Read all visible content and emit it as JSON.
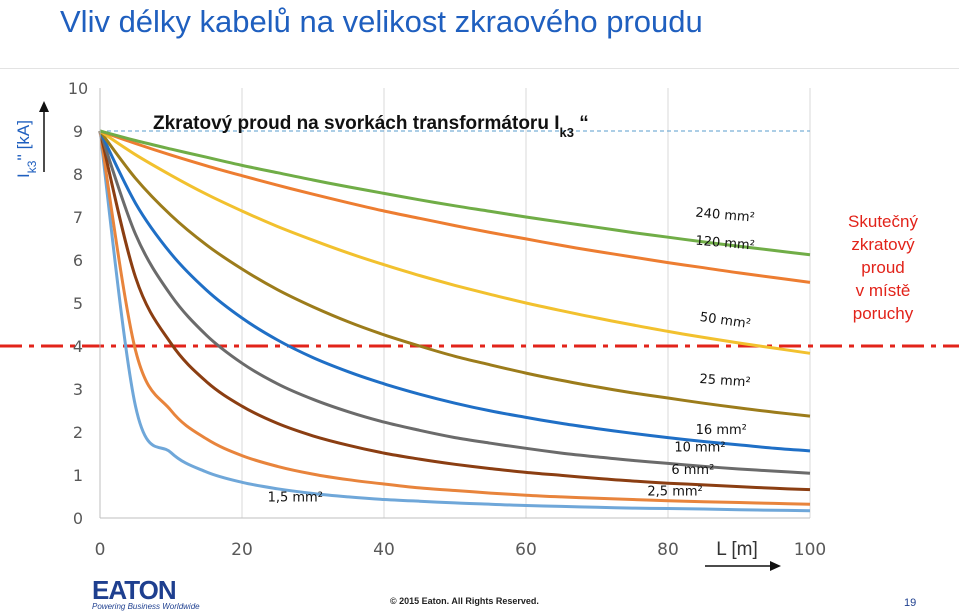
{
  "slide": {
    "title": "Vliv délky kabelů na velikost zkraového proudu",
    "fault_current_note": [
      "Skutečný",
      "zkratový",
      "proud",
      "v místě",
      "poruchy"
    ],
    "logo_text": "EATON",
    "logo_tagline": "Powering Business Worldwide",
    "copyright": "© 2015 Eaton. All Rights Reserved.",
    "page_number": "19"
  },
  "chart_data": {
    "type": "line",
    "title": "Zkratový proud na svorkách transformátoru I",
    "title_subscript": "k3",
    "title_suffix": " “",
    "ylabel": "I",
    "ylabel_sub": "k3",
    "ylabel_suffix": "'' [kA]",
    "xlabel": "L [m]",
    "xlim": [
      0,
      100
    ],
    "ylim": [
      0,
      10
    ],
    "x_ticks": [
      "0",
      "20",
      "40",
      "60",
      "80",
      "100"
    ],
    "y_ticks": [
      "0",
      "1",
      "2",
      "3",
      "4",
      "5",
      "6",
      "7",
      "8",
      "9",
      "10"
    ],
    "grid": "vertical",
    "reference_lines": [
      {
        "y": 9,
        "style": "dashed",
        "color": "#7ab0d8"
      },
      {
        "y": 4,
        "style": "dash-dot",
        "color": "#e2231a"
      }
    ],
    "x": [
      0,
      5,
      10,
      15,
      20,
      25,
      30,
      35,
      40,
      45,
      50,
      55,
      60,
      65,
      70,
      75,
      80,
      85,
      90,
      95,
      100
    ],
    "series": [
      {
        "name": "240 mm²",
        "color": "#70ad47",
        "values": [
          9.0,
          8.78,
          8.58,
          8.39,
          8.2,
          8.03,
          7.86,
          7.7,
          7.55,
          7.4,
          7.26,
          7.13,
          7.0,
          6.88,
          6.76,
          6.64,
          6.53,
          6.42,
          6.32,
          6.22,
          6.12
        ]
      },
      {
        "name": "120 mm²",
        "color": "#ed7d31",
        "values": [
          9.0,
          8.71,
          8.44,
          8.19,
          7.96,
          7.74,
          7.53,
          7.33,
          7.14,
          6.97,
          6.8,
          6.64,
          6.49,
          6.34,
          6.2,
          6.07,
          5.94,
          5.82,
          5.7,
          5.59,
          5.48
        ]
      },
      {
        "name": "50 mm²",
        "color": "#f2c12e",
        "values": [
          9.0,
          8.45,
          7.97,
          7.53,
          7.14,
          6.78,
          6.46,
          6.16,
          5.89,
          5.64,
          5.41,
          5.2,
          5.0,
          4.82,
          4.65,
          4.49,
          4.34,
          4.2,
          4.07,
          3.95,
          3.83
        ]
      },
      {
        "name": "25 mm²",
        "color": "#9c7c1b",
        "values": [
          9.0,
          7.9,
          7.04,
          6.35,
          5.79,
          5.31,
          4.91,
          4.56,
          4.26,
          4.0,
          3.76,
          3.56,
          3.37,
          3.2,
          3.05,
          2.91,
          2.79,
          2.67,
          2.56,
          2.46,
          2.37
        ]
      },
      {
        "name": "16 mm²",
        "color": "#1f6fc6",
        "values": [
          9.0,
          7.32,
          6.15,
          5.3,
          4.65,
          4.14,
          3.73,
          3.4,
          3.12,
          2.88,
          2.67,
          2.49,
          2.34,
          2.2,
          2.08,
          1.97,
          1.87,
          1.78,
          1.7,
          1.62,
          1.56
        ]
      },
      {
        "name": "10 mm²",
        "color": "#6b6b6b",
        "values": [
          9.0,
          6.6,
          5.18,
          4.25,
          3.6,
          3.12,
          2.76,
          2.47,
          2.23,
          2.04,
          1.87,
          1.74,
          1.62,
          1.51,
          1.42,
          1.34,
          1.27,
          1.2,
          1.14,
          1.09,
          1.04
        ]
      },
      {
        "name": "6 mm²",
        "color": "#8b3e12",
        "values": [
          9.0,
          5.6,
          4.06,
          3.17,
          2.6,
          2.2,
          1.91,
          1.69,
          1.51,
          1.37,
          1.25,
          1.15,
          1.06,
          0.99,
          0.92,
          0.86,
          0.81,
          0.77,
          0.73,
          0.69,
          0.66
        ]
      },
      {
        "name": "2,5 mm²",
        "color": "#e8843c",
        "values": [
          9.0,
          3.9,
          2.5,
          1.84,
          1.45,
          1.2,
          1.02,
          0.89,
          0.79,
          0.7,
          0.64,
          0.58,
          0.53,
          0.49,
          0.46,
          0.43,
          0.4,
          0.38,
          0.36,
          0.34,
          0.32
        ]
      },
      {
        "name": "1,5 mm²",
        "color": "#6fa7d9",
        "values": [
          9.0,
          2.6,
          1.52,
          1.07,
          0.83,
          0.68,
          0.57,
          0.49,
          0.43,
          0.39,
          0.35,
          0.32,
          0.29,
          0.27,
          0.25,
          0.23,
          0.22,
          0.21,
          0.19,
          0.18,
          0.17
        ]
      }
    ],
    "series_labels": [
      {
        "series": "240 mm²",
        "x": 88,
        "y": 6.95,
        "rotate": 5
      },
      {
        "series": "120 mm²",
        "x": 88,
        "y": 6.3,
        "rotate": 5
      },
      {
        "series": "50 mm²",
        "x": 88,
        "y": 4.5,
        "rotate": 8
      },
      {
        "series": "25 mm²",
        "x": 88,
        "y": 3.1,
        "rotate": 4
      },
      {
        "series": "16 mm²",
        "x": 87.5,
        "y": 1.95,
        "rotate": 0
      },
      {
        "series": "10 mm²",
        "x": 84.5,
        "y": 1.55,
        "rotate": 0
      },
      {
        "series": "6 mm²",
        "x": 83.5,
        "y": 1.02,
        "rotate": 0
      },
      {
        "series": "2,5 mm²",
        "x": 81,
        "y": 0.52,
        "rotate": 0
      },
      {
        "series": "1,5 mm²",
        "x": 27.5,
        "y": 0.38,
        "rotate": 0
      }
    ]
  }
}
